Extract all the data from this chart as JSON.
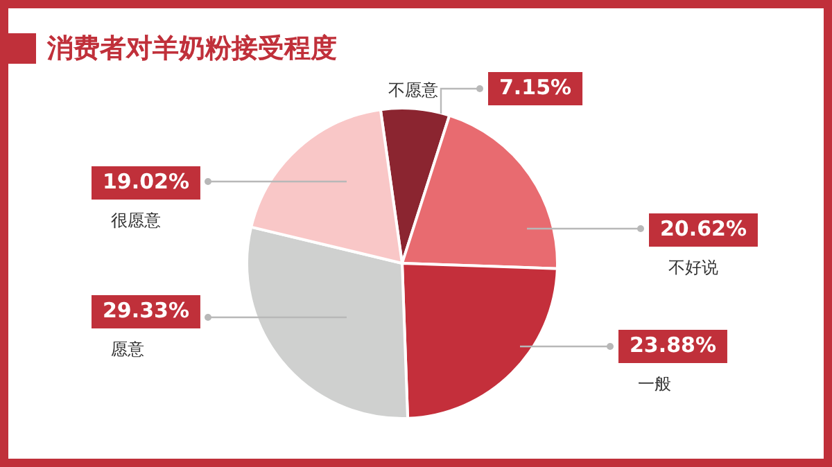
{
  "chart_data": {
    "type": "pie",
    "title": "消费者对羊奶粉接受程度",
    "categories": [
      "不愿意",
      "不好说",
      "一般",
      "愿意",
      "很愿意"
    ],
    "values": [
      7.15,
      20.62,
      23.88,
      29.33,
      19.02
    ],
    "value_labels": [
      "7.15%",
      "20.62%",
      "23.88%",
      "29.33%",
      "19.02%"
    ],
    "colors": [
      "#8b2530",
      "#e86b70",
      "#c42f3b",
      "#cfd0cf",
      "#f9c7c7"
    ],
    "legend": false
  }
}
